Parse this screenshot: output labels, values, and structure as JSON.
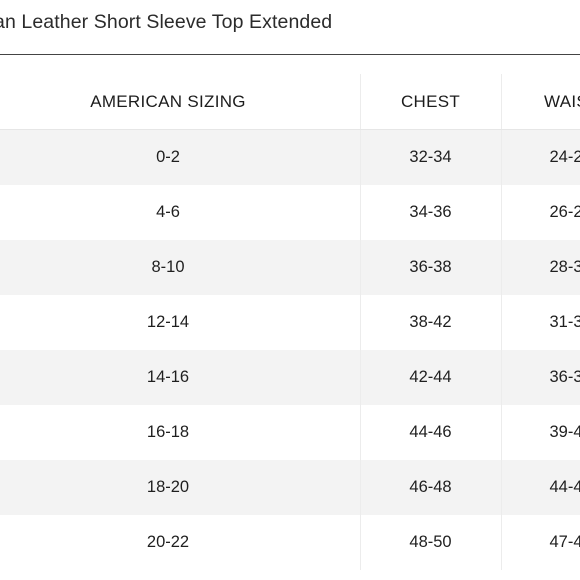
{
  "title": "an Leather Short Sleeve Top Extended",
  "table": {
    "headers": [
      "AMERICAN SIZING",
      "CHEST",
      "WAIS"
    ],
    "rows": [
      [
        "0-2",
        "32-34",
        "24-2"
      ],
      [
        "4-6",
        "34-36",
        "26-2"
      ],
      [
        "8-10",
        "36-38",
        "28-3"
      ],
      [
        "12-14",
        "38-42",
        "31-3"
      ],
      [
        "14-16",
        "42-44",
        "36-3"
      ],
      [
        "16-18",
        "44-46",
        "39-4"
      ],
      [
        "18-20",
        "46-48",
        "44-4"
      ],
      [
        "20-22",
        "48-50",
        "47-4"
      ]
    ]
  },
  "colors": {
    "row_shade": "#f3f3f3",
    "rule": "#444444",
    "text": "#1f1f1f"
  }
}
